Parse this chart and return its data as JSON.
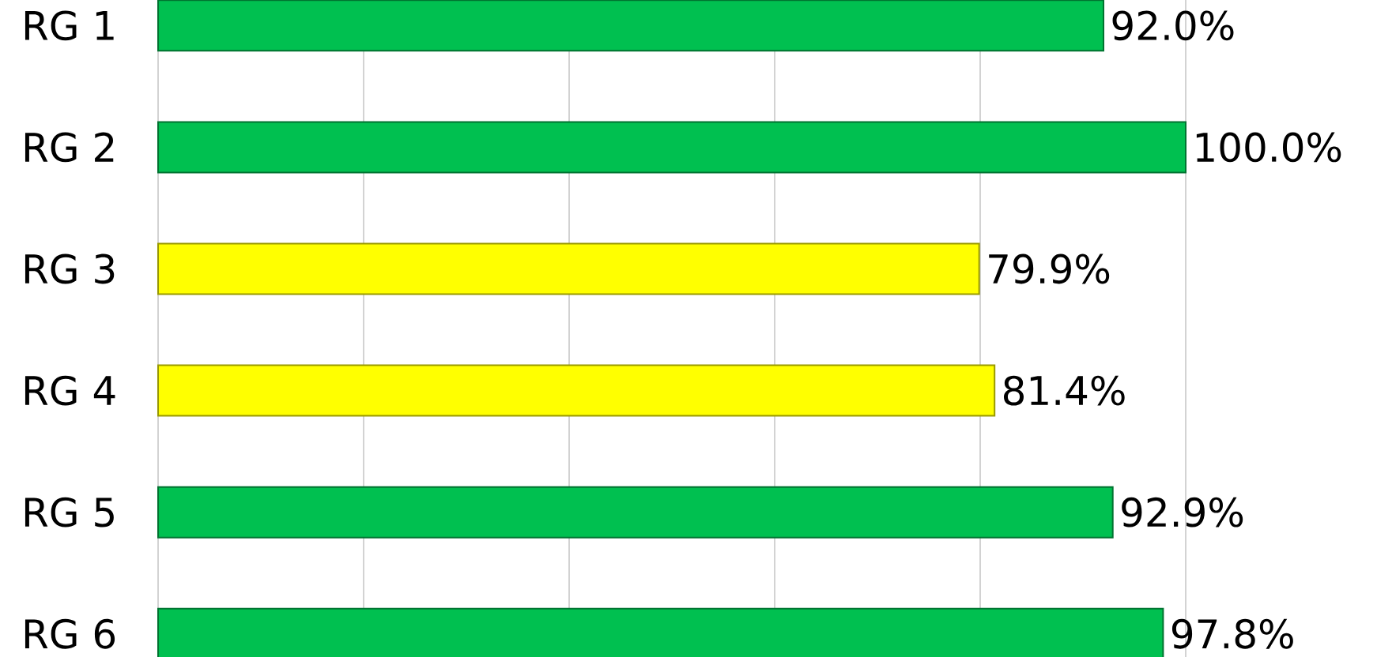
{
  "chart_data": {
    "type": "bar",
    "orientation": "horizontal",
    "categories": [
      "RG 1",
      "RG 2",
      "RG 3",
      "RG 4",
      "RG 5",
      "RG 6"
    ],
    "values": [
      92.0,
      100.0,
      79.9,
      81.4,
      92.9,
      97.8
    ],
    "value_labels": [
      "92.0%",
      "100.0%",
      "79.9%",
      "81.4%",
      "92.9%",
      "97.8%"
    ],
    "colors": [
      "#00c050",
      "#00c050",
      "#ffff00",
      "#ffff00",
      "#00c050",
      "#00c050"
    ],
    "xlim": [
      0,
      100
    ],
    "xticks": [
      {
        "value": 0,
        "label": null
      },
      {
        "value": 20,
        "label": null
      },
      {
        "value": 40,
        "label": null
      },
      {
        "value": 60,
        "label": null
      },
      {
        "value": 80,
        "label": null
      },
      {
        "value": 100,
        "label": null
      }
    ],
    "grid": "x",
    "tick_labels": "y"
  }
}
